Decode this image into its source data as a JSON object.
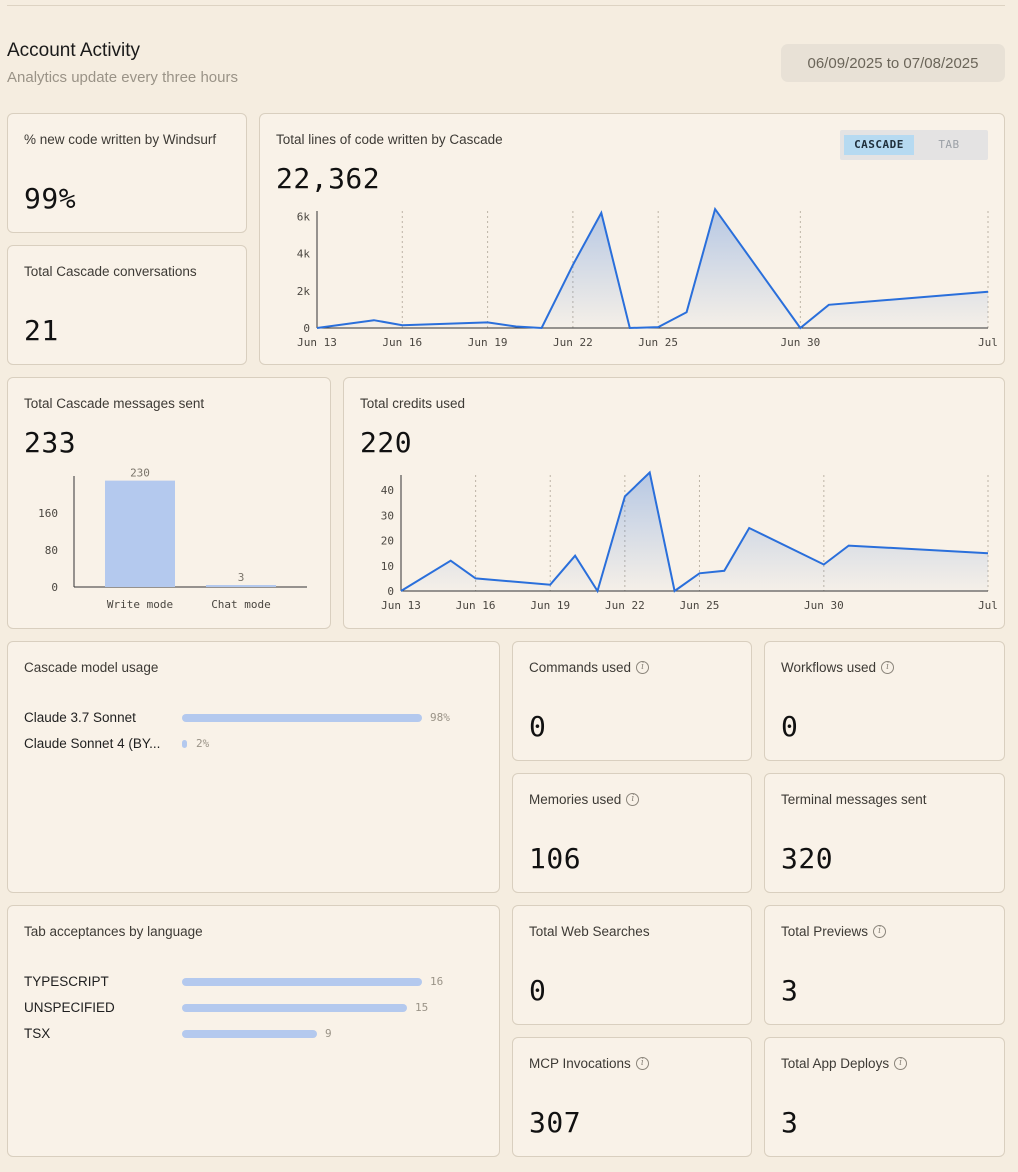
{
  "header": {
    "title": "Account Activity",
    "subtitle": "Analytics update every three hours",
    "date_range": "06/09/2025 to 07/08/2025"
  },
  "stats": {
    "new_code_pct": {
      "label": "% new code written by Windsurf",
      "value": "99%"
    },
    "conversations": {
      "label": "Total Cascade conversations",
      "value": "21"
    },
    "commands": {
      "label": "Commands used",
      "value": "0"
    },
    "workflows": {
      "label": "Workflows used",
      "value": "0"
    },
    "memories": {
      "label": "Memories used",
      "value": "106"
    },
    "terminal": {
      "label": "Terminal messages sent",
      "value": "320"
    },
    "web_searches": {
      "label": "Total Web Searches",
      "value": "0"
    },
    "previews": {
      "label": "Total Previews",
      "value": "3"
    },
    "mcp": {
      "label": "MCP Invocations",
      "value": "307"
    },
    "deploys": {
      "label": "Total App Deploys",
      "value": "3"
    }
  },
  "lines_card": {
    "label": "Total lines of code written by Cascade",
    "value": "22,362",
    "toggle": {
      "active": "CASCADE",
      "inactive": "TAB"
    }
  },
  "messages_card": {
    "label": "Total Cascade messages sent",
    "value": "233"
  },
  "credits_card": {
    "label": "Total credits used",
    "value": "220"
  },
  "model_usage": {
    "label": "Cascade model usage",
    "rows": [
      {
        "name": "Claude 3.7 Sonnet",
        "pct": 98,
        "text": "98%"
      },
      {
        "name": "Claude Sonnet 4 (BY...",
        "pct": 2,
        "text": "2%"
      }
    ]
  },
  "tab_languages": {
    "label": "Tab acceptances by language",
    "rows": [
      {
        "name": "TYPESCRIPT",
        "value": 16,
        "text": "16"
      },
      {
        "name": "UNSPECIFIED",
        "value": 15,
        "text": "15"
      },
      {
        "name": "TSX",
        "value": 9,
        "text": "9"
      }
    ]
  },
  "colors": {
    "line": "#2a6fdb",
    "bar": "#b4c9ee",
    "background": "#f5ede0"
  },
  "chart_data": [
    {
      "type": "area",
      "title": "Total lines of code written by Cascade",
      "x_ticks": [
        "Jun 13",
        "Jun 16",
        "Jun 19",
        "Jun 22",
        "Jun 25",
        "Jun 30",
        "Jul"
      ],
      "y_ticks": [
        "0",
        "2k",
        "4k",
        "6k"
      ],
      "x_range": [
        13,
        36.6
      ],
      "ylim": [
        0,
        6300
      ],
      "points": [
        [
          13,
          0
        ],
        [
          15,
          420
        ],
        [
          16,
          150
        ],
        [
          19,
          300
        ],
        [
          20,
          80
        ],
        [
          20.9,
          0
        ],
        [
          22,
          3400
        ],
        [
          23,
          6200
        ],
        [
          24,
          0
        ],
        [
          25,
          50
        ],
        [
          26,
          850
        ],
        [
          27,
          6400
        ],
        [
          30,
          0
        ],
        [
          31,
          1250
        ],
        [
          36.6,
          1950
        ]
      ]
    },
    {
      "type": "area",
      "title": "Total credits used",
      "x_ticks": [
        "Jun 13",
        "Jun 16",
        "Jun 19",
        "Jun 22",
        "Jun 25",
        "Jun 30",
        "Jul"
      ],
      "y_ticks": [
        "0",
        "10",
        "20",
        "30",
        "40"
      ],
      "x_range": [
        13,
        36.6
      ],
      "ylim": [
        0,
        46
      ],
      "points": [
        [
          13,
          0
        ],
        [
          15,
          12
        ],
        [
          16,
          5
        ],
        [
          19,
          2.5
        ],
        [
          20,
          14
        ],
        [
          20.9,
          0
        ],
        [
          22,
          37.5
        ],
        [
          23,
          47
        ],
        [
          24,
          0
        ],
        [
          25,
          7
        ],
        [
          26,
          8
        ],
        [
          27,
          25
        ],
        [
          30,
          10.5
        ],
        [
          31,
          18
        ],
        [
          36.6,
          15
        ]
      ]
    },
    {
      "type": "bar",
      "title": "Total Cascade messages sent",
      "categories": [
        "Write mode",
        "Chat mode"
      ],
      "values": [
        230,
        3
      ],
      "value_labels": [
        "230",
        "3"
      ],
      "y_ticks": [
        "0",
        "80",
        "160"
      ],
      "ylim": [
        0,
        240
      ]
    }
  ]
}
